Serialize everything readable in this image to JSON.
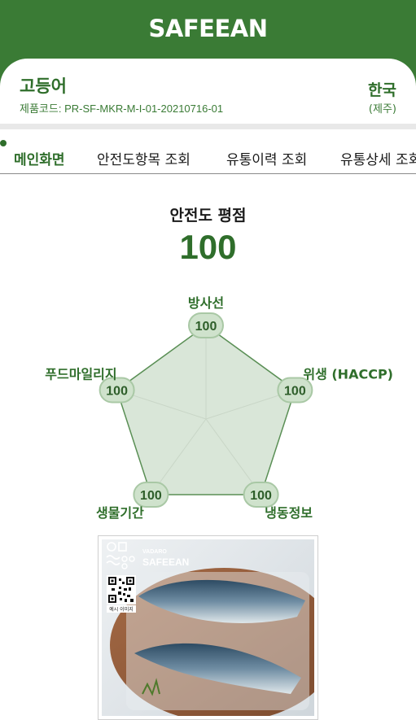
{
  "header": {
    "brand": "SAFEEAN"
  },
  "product": {
    "name": "고등어",
    "code": "제품코드: PR-SF-MKR-M-I-01-20210716-01",
    "origin_country": "한국",
    "origin_region": "(제주)"
  },
  "tabs": [
    {
      "label": "메인화면",
      "active": true
    },
    {
      "label": "안전도항목 조회",
      "active": false
    },
    {
      "label": "유통이력 조회",
      "active": false
    },
    {
      "label": "유통상세 조회",
      "active": false
    }
  ],
  "score": {
    "title": "안전도 평점",
    "value": "100"
  },
  "chart_data": {
    "type": "radar",
    "axes": [
      "방사선",
      "위생 (HACCP)",
      "냉동정보",
      "생물기간",
      "푸드마일리지"
    ],
    "values": [
      100,
      100,
      100,
      100,
      100
    ],
    "value_labels": [
      "100",
      "100",
      "100",
      "100",
      "100"
    ],
    "max": 100,
    "colors": {
      "fill": "#d9e6d8",
      "stroke": "#5a8f55",
      "badge_fill": "#cfe2cc",
      "badge_stroke": "#a9c8a5",
      "label": "#2f6e2b"
    }
  },
  "photo": {
    "logo_small": "VADARO",
    "logo_brand": "SAFEEAN",
    "qr_caption": "예시 이미지"
  },
  "colors": {
    "primary": "#3a7b35",
    "text_dark": "#1a1a1a"
  }
}
